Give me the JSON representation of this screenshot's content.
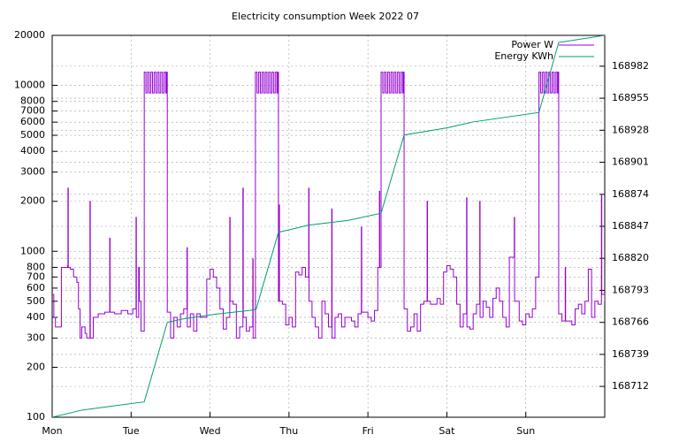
{
  "chart_data": {
    "type": "line",
    "title": "Electricity consumption Week 2022 07",
    "xlim": [
      0,
      168
    ],
    "xticks": [
      {
        "value": 0,
        "label": "Mon"
      },
      {
        "value": 24,
        "label": "Tue"
      },
      {
        "value": 48,
        "label": "Wed"
      },
      {
        "value": 72,
        "label": "Thu"
      },
      {
        "value": 96,
        "label": "Fri"
      },
      {
        "value": 120,
        "label": "Sat"
      },
      {
        "value": 144,
        "label": "Sun"
      }
    ],
    "ylim": [
      100,
      20000
    ],
    "yticks": [
      100,
      200,
      300,
      400,
      500,
      600,
      700,
      800,
      1000,
      2000,
      3000,
      4000,
      5000,
      6000,
      7000,
      8000,
      10000,
      20000
    ],
    "log_y": true,
    "y2lim": [
      168686,
      169008
    ],
    "y2ticks": [
      168712,
      168739,
      168766,
      168793,
      168820,
      168847,
      168874,
      168901,
      168928,
      168955,
      168982
    ],
    "grid": true,
    "legend": "top right",
    "series": [
      {
        "name": "Power W",
        "color": "#9400d3",
        "steps": true,
        "x": [
          0,
          0.5,
          1,
          2.8,
          4.7,
          4.8,
          4.9,
          5.5,
          6.5,
          7.5,
          8,
          8.5,
          9,
          10,
          10.5,
          11.5,
          11.6,
          12.5,
          14,
          16,
          17.5,
          17.6,
          19,
          21,
          23,
          24.5,
          25.5,
          25.6,
          26.3,
          26.5,
          27,
          28,
          28.5,
          29,
          29.5,
          30,
          30.5,
          31,
          31.5,
          32,
          32.5,
          33,
          33.5,
          34,
          34.5,
          34.8,
          35,
          36,
          37,
          38,
          39,
          40,
          41,
          41.1,
          42,
          43,
          44,
          45,
          47,
          48,
          49,
          50,
          51,
          52,
          53,
          54,
          54.1,
          55,
          56,
          57,
          58,
          58.1,
          59,
          60,
          61,
          61.1,
          61.8,
          62.3,
          62.8,
          63.3,
          63.8,
          64.3,
          64.8,
          65.3,
          65.8,
          66.3,
          66.8,
          67.3,
          67.8,
          68.3,
          68.6,
          68.8,
          69,
          69.1,
          70,
          71,
          72,
          73,
          74,
          75,
          76,
          77,
          78,
          78.1,
          79,
          80,
          81,
          82,
          83,
          84,
          85,
          85.1,
          86,
          87,
          88,
          89,
          91,
          92,
          93,
          94,
          94.1,
          96,
          97,
          98,
          99,
          99.5,
          99.6,
          100,
          100.5,
          101,
          101.5,
          102,
          102.5,
          103,
          103.5,
          104,
          104.5,
          105,
          105.5,
          106,
          106.5,
          106.8,
          107,
          108,
          109,
          110,
          111,
          112,
          113,
          114,
          114.1,
          115,
          117,
          118,
          119,
          120,
          121,
          122,
          123,
          124,
          125,
          126,
          126.1,
          127,
          128,
          129,
          130,
          130.1,
          131,
          132,
          133,
          134,
          135,
          136,
          137,
          138,
          139,
          140.5,
          140.6,
          142,
          143,
          144,
          145,
          146,
          147,
          148,
          148.5,
          149,
          149.5,
          150,
          150.5,
          151,
          151.5,
          152,
          152.5,
          153,
          153.5,
          153.8,
          154,
          155,
          156,
          156.1,
          158,
          159,
          160,
          161,
          162,
          163,
          164,
          165,
          166,
          167,
          167.1,
          168
        ],
        "values": [
          550,
          400,
          350,
          800,
          820,
          2400,
          800,
          780,
          700,
          650,
          450,
          300,
          350,
          320,
          300,
          2000,
          300,
          400,
          420,
          430,
          1200,
          430,
          420,
          440,
          420,
          450,
          1600,
          400,
          800,
          500,
          330,
          12000,
          9000,
          12000,
          9000,
          12000,
          9000,
          12000,
          9000,
          12000,
          9000,
          12000,
          9000,
          12000,
          9000,
          12000,
          430,
          300,
          400,
          350,
          420,
          450,
          1050,
          350,
          420,
          330,
          420,
          400,
          680,
          780,
          700,
          600,
          450,
          340,
          400,
          1600,
          500,
          480,
          300,
          350,
          2400,
          400,
          330,
          350,
          900,
          300,
          12000,
          9000,
          12000,
          9000,
          12000,
          9000,
          12000,
          9000,
          12000,
          9000,
          12000,
          9000,
          12000,
          9000,
          12000,
          500,
          1900,
          500,
          480,
          360,
          400,
          350,
          750,
          720,
          800,
          700,
          2400,
          500,
          400,
          350,
          300,
          500,
          420,
          350,
          1800,
          300,
          400,
          420,
          350,
          400,
          380,
          350,
          420,
          1400,
          430,
          400,
          380,
          440,
          800,
          2300,
          800,
          12000,
          9000,
          12000,
          9000,
          12000,
          9000,
          12000,
          9000,
          12000,
          9000,
          12000,
          9000,
          12000,
          9000,
          12000,
          450,
          330,
          350,
          420,
          330,
          480,
          500,
          2000,
          500,
          480,
          520,
          480,
          750,
          820,
          780,
          700,
          480,
          350,
          420,
          2100,
          350,
          340,
          420,
          480,
          2000,
          400,
          500,
          460,
          400,
          520,
          600,
          500,
          400,
          350,
          920,
          1600,
          500,
          380,
          360,
          420,
          400,
          450,
          700,
          12000,
          9000,
          12000,
          9000,
          12000,
          9000,
          12000,
          9000,
          12000,
          9000,
          12000,
          9000,
          12000,
          420,
          380,
          800,
          380,
          360,
          450,
          480,
          420,
          500,
          780,
          400,
          500,
          480,
          2200,
          550,
          500
        ]
      },
      {
        "name": "Energy KWh",
        "color": "#009e73",
        "axis": "y2",
        "x": [
          0,
          9,
          28,
          35,
          40,
          50,
          60,
          62,
          68.8,
          72,
          78,
          90,
          100,
          107,
          120,
          128,
          148,
          154,
          168
        ],
        "values": [
          168686,
          168692,
          168699,
          168766,
          168769,
          168773,
          168776,
          168777,
          168842,
          168844,
          168848,
          168852,
          168858,
          168924,
          168930,
          168935,
          168943,
          169002,
          169008
        ]
      }
    ]
  }
}
